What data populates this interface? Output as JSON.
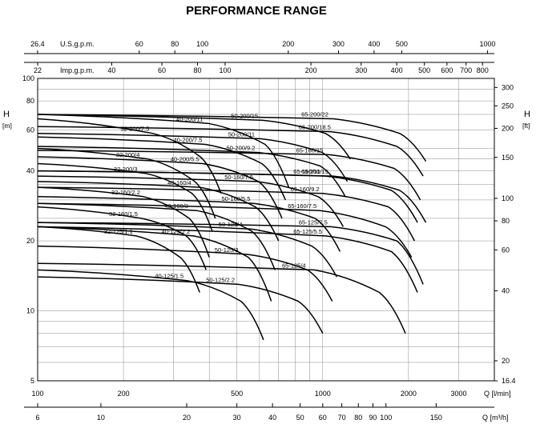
{
  "chart_data": {
    "type": "line",
    "title": "PERFORMANCE RANGE",
    "scale": "log-log",
    "grid": true,
    "x_axis": {
      "label": "Q [l/min]",
      "range": [
        100,
        4000
      ],
      "ticks": [
        100,
        200,
        500,
        1000,
        2000,
        3000
      ],
      "tick_labels": [
        "100",
        "200",
        "500",
        "1000",
        "2000",
        "3000"
      ]
    },
    "x_axis_m3h": {
      "label": "Q [m³/h]",
      "ticks": [
        6,
        10,
        20,
        30,
        40,
        50,
        60,
        70,
        80,
        90,
        100,
        150
      ],
      "tick_labels": [
        "6",
        "10",
        "20",
        "30",
        "40",
        "50",
        "60",
        "70",
        "80",
        "90",
        "100",
        "150"
      ]
    },
    "x_axis_usgpm": {
      "label": "U.S.g.p.m.",
      "ticks": [
        26.4,
        60,
        80,
        100,
        200,
        300,
        400,
        500,
        1000
      ],
      "tick_labels": [
        "26.4",
        "60",
        "80",
        "100",
        "200",
        "300",
        "400",
        "500",
        "1000"
      ]
    },
    "x_axis_impgpm": {
      "label": "Imp.g.p.m.",
      "ticks": [
        22,
        40,
        60,
        80,
        100,
        200,
        300,
        400,
        500,
        600,
        700,
        800
      ],
      "tick_labels": [
        "22",
        "40",
        "60",
        "80",
        "100",
        "200",
        "300",
        "400",
        "500",
        "600",
        "700",
        "800"
      ]
    },
    "y_axis": {
      "label": "H",
      "unit": "[m]",
      "range": [
        5,
        100
      ],
      "ticks": [
        5,
        10,
        20,
        40,
        60,
        80,
        100
      ],
      "tick_labels": [
        "5",
        "10",
        "20",
        "40",
        "60",
        "80",
        "100"
      ]
    },
    "y_axis_ft": {
      "label": "H",
      "unit": "[ft]",
      "ticks": [
        16.4,
        20,
        40,
        60,
        80,
        100,
        150,
        200,
        250,
        300
      ],
      "tick_labels": [
        "16.4",
        "20",
        "40",
        "60",
        "80",
        "100",
        "150",
        "200",
        "250",
        "300"
      ]
    },
    "series": [
      {
        "name": "32-200/7.5",
        "qmax": 440,
        "h": [
          67,
          58,
          46,
          32
        ]
      },
      {
        "name": "32-200/4",
        "qmax": 420,
        "h": [
          50,
          45,
          36,
          25
        ]
      },
      {
        "name": "32-200/3",
        "qmax": 410,
        "h": [
          43,
          39,
          32,
          22
        ]
      },
      {
        "name": "32-160/2.2",
        "qmax": 400,
        "h": [
          34,
          31,
          25,
          17
        ]
      },
      {
        "name": "32-160/1.5",
        "qmax": 390,
        "h": [
          28,
          25,
          21,
          15
        ]
      },
      {
        "name": "32-125/1.1",
        "qmax": 370,
        "h": [
          23,
          21,
          17,
          12
        ]
      },
      {
        "name": "40-200/11",
        "qmax": 760,
        "h": [
          70,
          64,
          52,
          34
        ]
      },
      {
        "name": "40-200/7.5",
        "qmax": 740,
        "h": [
          56,
          52,
          43,
          30
        ]
      },
      {
        "name": "40-200/5.5",
        "qmax": 720,
        "h": [
          46,
          43,
          36,
          25
        ]
      },
      {
        "name": "40-160/4",
        "qmax": 700,
        "h": [
          36,
          34,
          28,
          20
        ]
      },
      {
        "name": "40-160/3",
        "qmax": 680,
        "h": [
          29,
          27,
          22,
          15
        ]
      },
      {
        "name": "40-125/2.2",
        "qmax": 660,
        "h": [
          23,
          21,
          17,
          11
        ]
      },
      {
        "name": "40-125/1.5",
        "qmax": 620,
        "h": [
          15,
          13.5,
          11,
          7.5
        ]
      },
      {
        "name": "50-200/15",
        "qmax": 1250,
        "h": [
          70,
          66,
          58,
          45
        ]
      },
      {
        "name": "50-200/11",
        "qmax": 1220,
        "h": [
          58,
          55,
          48,
          36
        ]
      },
      {
        "name": "50-200/9.2",
        "qmax": 1200,
        "h": [
          51,
          48,
          42,
          31
        ]
      },
      {
        "name": "50-160/7.5",
        "qmax": 1180,
        "h": [
          38,
          36,
          31,
          23
        ]
      },
      {
        "name": "50-160/5.5",
        "qmax": 1150,
        "h": [
          31,
          29,
          25,
          18
        ]
      },
      {
        "name": "50-125/4",
        "qmax": 1120,
        "h": [
          24,
          22.5,
          19,
          14
        ]
      },
      {
        "name": "50-125/3",
        "qmax": 1080,
        "h": [
          19,
          17.5,
          15,
          11
        ]
      },
      {
        "name": "50-125/2.2",
        "qmax": 1000,
        "h": [
          14,
          13,
          11,
          8
        ]
      },
      {
        "name": "65-200/22",
        "qmax": 2300,
        "h": [
          70,
          67,
          58,
          44
        ]
      },
      {
        "name": "65-200/18.5",
        "qmax": 2250,
        "h": [
          62,
          59,
          51,
          38
        ]
      },
      {
        "name": "65-200/15",
        "qmax": 2300,
        "h": [
          40,
          38,
          33,
          24
        ]
      },
      {
        "name": "65-160/15",
        "qmax": 2200,
        "h": [
          49,
          47,
          41,
          30
        ]
      },
      {
        "name": "65-160/11",
        "qmax": 2150,
        "h": [
          40,
          38,
          33,
          24
        ]
      },
      {
        "name": "65-160/9.2",
        "qmax": 2100,
        "h": [
          34,
          32,
          28,
          20
        ]
      },
      {
        "name": "65-160/7.5",
        "qmax": 2050,
        "h": [
          29,
          27,
          23,
          17
        ]
      },
      {
        "name": "65-125/7.5",
        "qmax": 2250,
        "h": [
          24,
          23,
          20,
          13
        ]
      },
      {
        "name": "65-125/5.5",
        "qmax": 2150,
        "h": [
          23,
          21,
          18,
          12
        ]
      },
      {
        "name": "65-125/4",
        "qmax": 1950,
        "h": [
          16,
          15,
          12,
          8
        ]
      }
    ]
  }
}
